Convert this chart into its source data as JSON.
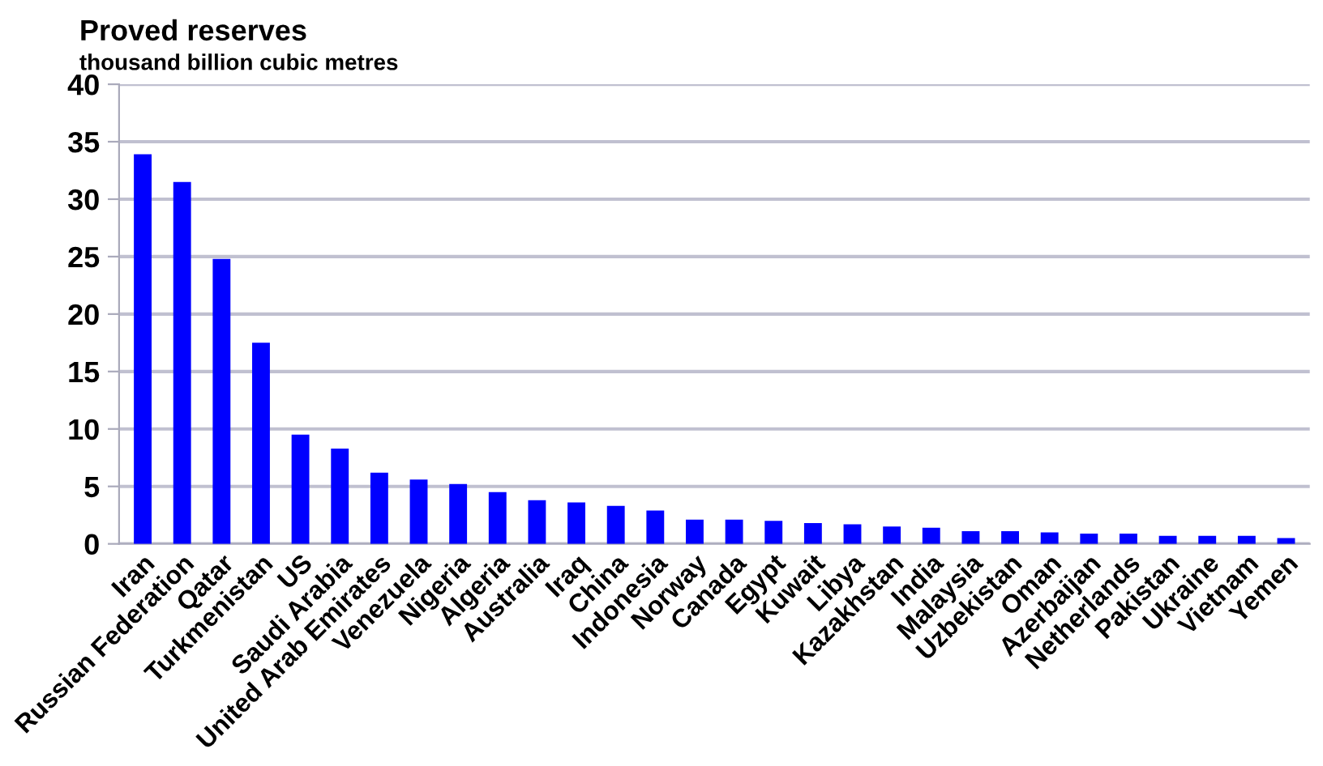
{
  "chart_data": {
    "type": "bar",
    "title": "Proved reserves",
    "subtitle": "thousand billion cubic metres",
    "categories": [
      "Iran",
      "Russian Federation",
      "Qatar",
      "Turkmenistan",
      "US",
      "Saudi Arabia",
      "United Arab Emirates",
      "Venezuela",
      "Nigeria",
      "Algeria",
      "Australia",
      "Iraq",
      "China",
      "Indonesia",
      "Norway",
      "Canada",
      "Egypt",
      "Kuwait",
      "Libya",
      "Kazakhstan",
      "India",
      "Malaysia",
      "Uzbekistan",
      "Oman",
      "Azerbaijan",
      "Netherlands",
      "Pakistan",
      "Ukraine",
      "Vietnam",
      "Yemen"
    ],
    "values": [
      33.9,
      31.5,
      24.8,
      17.5,
      9.5,
      8.3,
      6.2,
      5.6,
      5.2,
      4.5,
      3.8,
      3.6,
      3.3,
      2.9,
      2.1,
      2.1,
      2.0,
      1.8,
      1.7,
      1.5,
      1.4,
      1.1,
      1.1,
      1.0,
      0.9,
      0.9,
      0.7,
      0.7,
      0.7,
      0.5
    ],
    "color": "#0000ff",
    "ylim": [
      0,
      40
    ],
    "yticks": [
      0,
      5,
      10,
      15,
      20,
      25,
      30,
      35,
      40
    ],
    "grid": "y"
  }
}
